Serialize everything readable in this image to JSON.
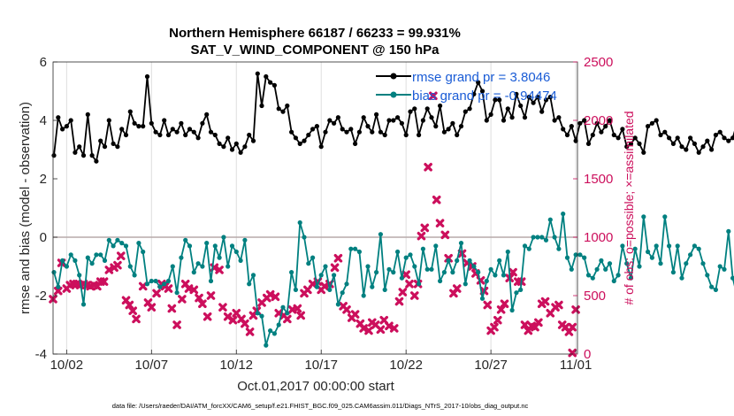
{
  "chart_data": {
    "type": "line",
    "title": [
      "Northern Hemisphere 66187 / 66233 = 99.931%",
      "SAT_V_WIND_COMPONENT @ 150 hPa"
    ],
    "xlabel": "Oct.01,2017 00:00:00 start",
    "ylabel": "rmse and bias (model - observation)",
    "ylabel_right": "# of obs: o=possible; ×=assimilated",
    "x_ticks": [
      {
        "label": "10/02",
        "day": 1
      },
      {
        "label": "10/07",
        "day": 6
      },
      {
        "label": "10/12",
        "day": 11
      },
      {
        "label": "10/17",
        "day": 16
      },
      {
        "label": "10/22",
        "day": 21
      },
      {
        "label": "10/27",
        "day": 26
      },
      {
        "label": "11/01",
        "day": 31
      }
    ],
    "xlim": [
      0.2,
      31.1
    ],
    "ylim": [
      -4,
      6
    ],
    "y_ticks": [
      "-4",
      "-2",
      "0",
      "2",
      "4",
      "6"
    ],
    "ylim_right": [
      0,
      2500
    ],
    "y_ticks_right": [
      "0",
      "500",
      "1000",
      "1500",
      "2000",
      "2500"
    ],
    "grid": "vertical",
    "legend": {
      "position": "top-right",
      "entries": [
        {
          "label": "rmse grand pr = 3.8046",
          "color": "#000000"
        },
        {
          "label": "bias grand pr = -0.94474",
          "color": "#008080"
        }
      ]
    },
    "series": [
      {
        "name": "rmse",
        "color": "#000000",
        "step": 0.25,
        "start": 0.25,
        "values": [
          2.8,
          4.1,
          3.7,
          3.8,
          4.0,
          2.9,
          3.1,
          2.8,
          4.2,
          2.8,
          2.6,
          3.3,
          3.1,
          4.0,
          3.2,
          3.1,
          3.7,
          3.5,
          4.3,
          3.9,
          3.8,
          3.8,
          5.5,
          3.9,
          3.6,
          3.5,
          4.0,
          3.5,
          3.7,
          3.6,
          3.9,
          3.5,
          3.7,
          3.6,
          3.4,
          3.9,
          4.2,
          3.6,
          3.5,
          3.2,
          3.1,
          3.4,
          3.0,
          3.2,
          2.9,
          3.1,
          3.5,
          3.3,
          5.6,
          4.5,
          5.5,
          5.3,
          5.2,
          4.4,
          4.3,
          4.5,
          3.6,
          3.4,
          3.2,
          3.3,
          3.5,
          3.7,
          3.8,
          3.1,
          3.6,
          4.0,
          3.9,
          4.1,
          3.7,
          3.6,
          3.7,
          3.2,
          3.6,
          4.1,
          3.8,
          3.6,
          4.2,
          3.6,
          3.5,
          4.0,
          4.0,
          4.1,
          3.9,
          3.5,
          4.3,
          4.4,
          3.5,
          4.0,
          4.4,
          4.1,
          3.8,
          4.5,
          3.6,
          3.7,
          3.9,
          3.5,
          3.8,
          4.3,
          4.4,
          4.9,
          5.3,
          5.0,
          4.0,
          4.2,
          4.7,
          4.7,
          4.0,
          4.4,
          4.1,
          4.9,
          4.5,
          4.1,
          4.8,
          4.6,
          4.8,
          4.3,
          4.7,
          4.8,
          4.0,
          4.1,
          3.7,
          3.5,
          3.8,
          3.3,
          3.9,
          4.0,
          3.2,
          3.5,
          3.9,
          3.6,
          3.8,
          4.0,
          3.5,
          3.4,
          3.7,
          3.1,
          3.2,
          3.4,
          3.2,
          2.9,
          3.8,
          3.9,
          4.0,
          3.5,
          3.6,
          3.4,
          3.2,
          3.4,
          3.1,
          3.0,
          3.4,
          3.2,
          2.9,
          3.1,
          3.3,
          3.0,
          3.5,
          3.6,
          3.4,
          3.3,
          3.4,
          3.9,
          3.8,
          3.9,
          2.5,
          3.3,
          3.5,
          3.6
        ]
      },
      {
        "name": "bias",
        "color": "#008080",
        "step": 0.25,
        "start": 0.25,
        "values": [
          -1.2,
          -1.7,
          -0.8,
          -1.0,
          -0.6,
          -0.8,
          -1.3,
          -2.3,
          -0.7,
          -0.9,
          -0.6,
          -0.6,
          -0.8,
          -0.1,
          -0.3,
          -0.1,
          -0.2,
          -0.3,
          -1.0,
          -1.3,
          -0.2,
          -0.5,
          -1.6,
          -1.5,
          -1.5,
          -1.7,
          -1.6,
          -1.5,
          -1.0,
          -1.9,
          -0.7,
          -0.1,
          -0.3,
          -1.2,
          -0.9,
          -1.0,
          -0.2,
          -1.5,
          -0.3,
          -0.7,
          0.0,
          -1.0,
          -0.3,
          -0.5,
          -0.8,
          -0.1,
          -1.6,
          -1.3,
          -2.6,
          -2.7,
          -3.7,
          -3.2,
          -3.3,
          -3.0,
          -2.4,
          -2.6,
          -1.2,
          -1.8,
          0.5,
          0.0,
          -0.9,
          -0.7,
          -1.7,
          -1.3,
          -1.0,
          -1.8,
          -1.3,
          -2.3,
          -1.9,
          -1.6,
          -0.4,
          -0.4,
          -0.5,
          -2.0,
          -1.0,
          -1.7,
          -1.2,
          0.1,
          -1.8,
          -1.1,
          -1.2,
          -0.5,
          -1.4,
          -0.7,
          -0.6,
          -1.0,
          -1.6,
          -0.4,
          -1.1,
          -1.1,
          -0.3,
          -1.5,
          -1.2,
          -0.8,
          -1.2,
          -0.8,
          -0.2,
          -1.6,
          -0.8,
          -1.0,
          -1.2,
          -2.1,
          -1.5,
          -1.1,
          -1.3,
          -0.8,
          -1.3,
          -0.5,
          -2.5,
          -1.9,
          -1.8,
          -0.3,
          -0.4,
          0.0,
          0.0,
          0.0,
          -0.1,
          0.6,
          0.0,
          -0.4,
          0.8,
          -0.7,
          -1.1,
          -0.6,
          -0.6,
          -0.7,
          -1.3,
          -1.4,
          -1.1,
          -0.8,
          -1.1,
          -0.9,
          -1.5,
          -1.3,
          -0.3,
          -0.9,
          -1.4,
          -0.4,
          -1.0,
          0.7,
          -0.5,
          -0.7,
          -0.3,
          -0.9,
          0.7,
          -0.3,
          -1.2,
          -0.3,
          -1.4,
          -0.9,
          -0.6,
          -0.3,
          -0.4,
          -0.9,
          -1.3,
          -1.7,
          -1.8,
          -1.0,
          -1.1,
          0.2,
          -1.4,
          -2.0,
          -2.2,
          -1.0,
          -0.7,
          0.5
        ]
      },
      {
        "name": "obs assimilated (×)",
        "color": "#cc0f5c",
        "axis": "right",
        "points": [
          [
            0.2,
            470
          ],
          [
            0.5,
            540
          ],
          [
            0.7,
            780
          ],
          [
            1.0,
            560
          ],
          [
            1.2,
            590
          ],
          [
            1.4,
            600
          ],
          [
            1.6,
            600
          ],
          [
            1.8,
            590
          ],
          [
            2.0,
            600
          ],
          [
            2.2,
            590
          ],
          [
            2.4,
            580
          ],
          [
            2.6,
            590
          ],
          [
            2.8,
            580
          ],
          [
            3.0,
            620
          ],
          [
            3.2,
            620
          ],
          [
            3.5,
            720
          ],
          [
            3.8,
            740
          ],
          [
            4.0,
            760
          ],
          [
            4.2,
            840
          ],
          [
            4.5,
            460
          ],
          [
            4.7,
            420
          ],
          [
            4.9,
            370
          ],
          [
            5.1,
            300
          ],
          [
            5.5,
            580
          ],
          [
            5.8,
            440
          ],
          [
            6.0,
            400
          ],
          [
            6.3,
            520
          ],
          [
            6.6,
            600
          ],
          [
            6.8,
            580
          ],
          [
            7.0,
            560
          ],
          [
            7.2,
            390
          ],
          [
            7.5,
            250
          ],
          [
            7.8,
            470
          ],
          [
            8.0,
            600
          ],
          [
            8.2,
            560
          ],
          [
            8.5,
            550
          ],
          [
            8.8,
            480
          ],
          [
            9.0,
            430
          ],
          [
            9.3,
            320
          ],
          [
            9.5,
            500
          ],
          [
            9.7,
            740
          ],
          [
            10.0,
            720
          ],
          [
            10.2,
            400
          ],
          [
            10.5,
            320
          ],
          [
            10.8,
            290
          ],
          [
            11.0,
            350
          ],
          [
            11.3,
            300
          ],
          [
            11.5,
            260
          ],
          [
            11.8,
            190
          ],
          [
            12.0,
            330
          ],
          [
            12.2,
            370
          ],
          [
            12.5,
            440
          ],
          [
            12.8,
            480
          ],
          [
            13.0,
            510
          ],
          [
            13.3,
            490
          ],
          [
            13.5,
            350
          ],
          [
            13.8,
            330
          ],
          [
            14.0,
            300
          ],
          [
            14.3,
            380
          ],
          [
            14.6,
            390
          ],
          [
            14.8,
            330
          ],
          [
            15.0,
            520
          ],
          [
            15.2,
            550
          ],
          [
            15.5,
            600
          ],
          [
            15.8,
            620
          ],
          [
            16.0,
            550
          ],
          [
            16.2,
            580
          ],
          [
            16.5,
            600
          ],
          [
            16.8,
            740
          ],
          [
            17.0,
            820
          ],
          [
            17.3,
            410
          ],
          [
            17.5,
            380
          ],
          [
            17.8,
            310
          ],
          [
            18.0,
            340
          ],
          [
            18.3,
            260
          ],
          [
            18.5,
            220
          ],
          [
            18.8,
            200
          ],
          [
            19.0,
            270
          ],
          [
            19.2,
            250
          ],
          [
            19.5,
            210
          ],
          [
            19.7,
            290
          ],
          [
            20.0,
            240
          ],
          [
            20.3,
            220
          ],
          [
            20.6,
            450
          ],
          [
            20.8,
            530
          ],
          [
            21.0,
            680
          ],
          [
            21.2,
            600
          ],
          [
            21.5,
            500
          ],
          [
            21.7,
            600
          ],
          [
            21.9,
            1010
          ],
          [
            22.1,
            1080
          ],
          [
            22.3,
            1600
          ],
          [
            22.6,
            2210
          ],
          [
            22.8,
            1320
          ],
          [
            23.0,
            1120
          ],
          [
            23.3,
            1020
          ],
          [
            23.5,
            820
          ],
          [
            23.8,
            520
          ],
          [
            24.0,
            560
          ],
          [
            24.3,
            860
          ],
          [
            24.6,
            780
          ],
          [
            24.9,
            750
          ],
          [
            25.1,
            690
          ],
          [
            25.4,
            630
          ],
          [
            25.6,
            540
          ],
          [
            25.8,
            420
          ],
          [
            26.0,
            200
          ],
          [
            26.2,
            230
          ],
          [
            26.4,
            290
          ],
          [
            26.6,
            380
          ],
          [
            26.8,
            430
          ],
          [
            27.1,
            650
          ],
          [
            27.3,
            700
          ],
          [
            27.6,
            620
          ],
          [
            27.8,
            620
          ],
          [
            28.0,
            250
          ],
          [
            28.2,
            200
          ],
          [
            28.4,
            240
          ],
          [
            28.6,
            230
          ],
          [
            28.8,
            270
          ],
          [
            29.0,
            430
          ],
          [
            29.2,
            450
          ],
          [
            29.5,
            350
          ],
          [
            29.8,
            400
          ],
          [
            30.0,
            420
          ],
          [
            30.2,
            250
          ],
          [
            30.4,
            230
          ],
          [
            30.6,
            190
          ],
          [
            30.8,
            230
          ],
          [
            31.0,
            380
          ],
          [
            30.8,
            10
          ]
        ]
      }
    ]
  },
  "footer": "data file: /Users/raeder/DAI/ATM_forcXX/CAM6_setup/f.e21.FHIST_BGC.f09_025.CAM6assim.011/Diags_NTrS_2017-10/obs_diag_output.nc"
}
